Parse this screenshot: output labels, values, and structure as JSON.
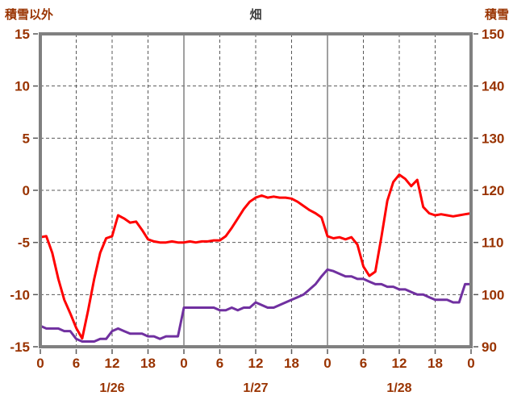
{
  "chart_data": {
    "type": "line",
    "title": "畑",
    "left_axis": {
      "title": "積雪以外",
      "min": -15,
      "max": 15,
      "ticks": [
        15,
        10,
        5,
        0,
        -5,
        -10,
        -15
      ]
    },
    "right_axis": {
      "title": "積雪",
      "min": 90,
      "max": 150,
      "ticks": [
        150,
        140,
        130,
        120,
        110,
        100,
        90
      ]
    },
    "x_axis": {
      "total_hours": 72,
      "tick_interval": 6,
      "tick_labels": [
        "0",
        "6",
        "12",
        "18",
        "0",
        "6",
        "12",
        "18",
        "0",
        "6",
        "12",
        "18",
        "0"
      ],
      "day_labels": [
        {
          "label": "1/26",
          "center_hour": 12
        },
        {
          "label": "1/27",
          "center_hour": 36
        },
        {
          "label": "1/28",
          "center_hour": 60
        }
      ]
    },
    "grid": {
      "h_lines": [
        10,
        5,
        0,
        -5,
        -10
      ],
      "v_dashed_hours": [
        6,
        12,
        18,
        30,
        36,
        42,
        54,
        60,
        66
      ],
      "v_solid_hours": [
        24,
        48
      ]
    },
    "colors": {
      "red_series": "#FF0000",
      "purple_series": "#7030A0",
      "border": "#808080",
      "grid": "#595959",
      "axis_text": "#993300",
      "title_text": "#404040"
    },
    "series": [
      {
        "name": "purple-series",
        "axis": "right",
        "color_key": "purple_series",
        "values": [
          94,
          93.5,
          93.5,
          93.5,
          93,
          93,
          91.5,
          91,
          91,
          91,
          91.5,
          91.5,
          93,
          93.5,
          93,
          92.5,
          92.5,
          92.5,
          92,
          92,
          91.5,
          92,
          92,
          92,
          97.5,
          97.5,
          97.5,
          97.5,
          97.5,
          97.5,
          97,
          97,
          97.5,
          97,
          97.5,
          97.5,
          98.5,
          98,
          97.5,
          97.5,
          98,
          98.5,
          99,
          99.5,
          100,
          101,
          102,
          103.5,
          104.8,
          104.5,
          104,
          103.5,
          103.5,
          103,
          103,
          102.5,
          102,
          102,
          101.5,
          101.5,
          101,
          101,
          100.5,
          100,
          100,
          99.5,
          99,
          99,
          99,
          98.5,
          98.5,
          102,
          102
        ]
      },
      {
        "name": "red-series",
        "axis": "left",
        "color_key": "red_series",
        "values": [
          -4.5,
          -4.4,
          -6,
          -8.5,
          -10.5,
          -11.8,
          -13.2,
          -14.2,
          -11.5,
          -8.5,
          -6,
          -4.6,
          -4.4,
          -2.4,
          -2.7,
          -3.1,
          -3,
          -3.8,
          -4.7,
          -4.9,
          -5,
          -5,
          -4.9,
          -5,
          -5,
          -4.9,
          -5,
          -4.9,
          -4.9,
          -4.8,
          -4.8,
          -4.4,
          -3.6,
          -2.7,
          -1.8,
          -1.1,
          -0.7,
          -0.5,
          -0.7,
          -0.6,
          -0.7,
          -0.7,
          -0.8,
          -1.1,
          -1.5,
          -1.9,
          -2.2,
          -2.6,
          -4.4,
          -4.6,
          -4.5,
          -4.7,
          -4.5,
          -5.2,
          -7.3,
          -8.2,
          -7.8,
          -4.5,
          -1,
          0.8,
          1.5,
          1.1,
          0.4,
          1,
          -1.6,
          -2.2,
          -2.4,
          -2.3,
          -2.4,
          -2.5,
          -2.4,
          -2.3,
          -2.2
        ]
      }
    ]
  }
}
